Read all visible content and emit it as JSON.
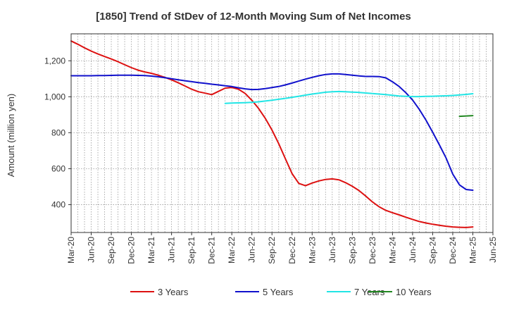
{
  "chart_data": {
    "type": "line",
    "title": "[1850]  Trend of StDev of 12-Month Moving Sum of Net Incomes",
    "ylabel": "Amount (million yen)",
    "xlabel": "",
    "ylim": [
      245,
      1350
    ],
    "yticks": [
      400,
      600,
      800,
      1000,
      1200
    ],
    "ytick_labels": [
      "400",
      "600",
      "800",
      "1,000",
      "1,200"
    ],
    "x_start": "Mar-20",
    "x_end": "Jun-25",
    "xticks": [
      "Mar-20",
      "Jun-20",
      "Sep-20",
      "Dec-20",
      "Mar-21",
      "Jun-21",
      "Sep-21",
      "Dec-21",
      "Mar-22",
      "Jun-22",
      "Sep-22",
      "Dec-22",
      "Mar-23",
      "Jun-23",
      "Sep-23",
      "Dec-23",
      "Mar-24",
      "Jun-24",
      "Sep-24",
      "Dec-24",
      "Mar-25",
      "Jun-25"
    ],
    "grid": true,
    "legend_position": "bottom",
    "series": [
      {
        "name": "3 Years",
        "color": "#dd1111",
        "x": [
          "Mar-20",
          "Apr-20",
          "May-20",
          "Jun-20",
          "Jul-20",
          "Aug-20",
          "Sep-20",
          "Oct-20",
          "Nov-20",
          "Dec-20",
          "Jan-21",
          "Feb-21",
          "Mar-21",
          "Apr-21",
          "May-21",
          "Jun-21",
          "Jul-21",
          "Aug-21",
          "Sep-21",
          "Oct-21",
          "Nov-21",
          "Dec-21",
          "Jan-22",
          "Feb-22",
          "Mar-22",
          "Apr-22",
          "May-22",
          "Jun-22",
          "Jul-22",
          "Aug-22",
          "Sep-22",
          "Oct-22",
          "Nov-22",
          "Dec-22",
          "Jan-23",
          "Feb-23",
          "Mar-23",
          "Apr-23",
          "May-23",
          "Jun-23",
          "Jul-23",
          "Aug-23",
          "Sep-23",
          "Oct-23",
          "Nov-23",
          "Dec-23",
          "Jan-24",
          "Feb-24",
          "Mar-24",
          "Apr-24",
          "May-24",
          "Jun-24",
          "Jul-24",
          "Aug-24",
          "Sep-24",
          "Oct-24",
          "Nov-24",
          "Dec-24",
          "Jan-25",
          "Feb-25",
          "Mar-25"
        ],
        "values": [
          1310,
          1292,
          1272,
          1254,
          1238,
          1224,
          1210,
          1195,
          1178,
          1162,
          1148,
          1138,
          1130,
          1120,
          1108,
          1094,
          1078,
          1060,
          1042,
          1028,
          1020,
          1012,
          1030,
          1048,
          1052,
          1042,
          1018,
          980,
          935,
          880,
          815,
          740,
          655,
          572,
          518,
          505,
          520,
          532,
          540,
          543,
          538,
          522,
          502,
          478,
          448,
          415,
          388,
          368,
          355,
          343,
          330,
          318,
          306,
          298,
          291,
          285,
          280,
          276,
          274,
          273,
          276
        ]
      },
      {
        "name": "5 Years",
        "color": "#1111cc",
        "x": [
          "Mar-20",
          "Apr-20",
          "May-20",
          "Jun-20",
          "Jul-20",
          "Aug-20",
          "Sep-20",
          "Oct-20",
          "Nov-20",
          "Dec-20",
          "Jan-21",
          "Feb-21",
          "Mar-21",
          "Apr-21",
          "May-21",
          "Jun-21",
          "Jul-21",
          "Aug-21",
          "Sep-21",
          "Oct-21",
          "Nov-21",
          "Dec-21",
          "Jan-22",
          "Feb-22",
          "Mar-22",
          "Apr-22",
          "May-22",
          "Jun-22",
          "Jul-22",
          "Aug-22",
          "Sep-22",
          "Oct-22",
          "Nov-22",
          "Dec-22",
          "Jan-23",
          "Feb-23",
          "Mar-23",
          "Apr-23",
          "May-23",
          "Jun-23",
          "Jul-23",
          "Aug-23",
          "Sep-23",
          "Oct-23",
          "Nov-23",
          "Dec-23",
          "Jan-24",
          "Feb-24",
          "Mar-24",
          "Apr-24",
          "May-24",
          "Jun-24",
          "Jul-24",
          "Aug-24",
          "Sep-24",
          "Oct-24",
          "Nov-24",
          "Dec-24",
          "Jan-25",
          "Feb-25",
          "Mar-25"
        ],
        "values": [
          1117,
          1117,
          1117,
          1117,
          1118,
          1118,
          1119,
          1120,
          1120,
          1120,
          1119,
          1118,
          1115,
          1111,
          1106,
          1100,
          1094,
          1089,
          1084,
          1079,
          1075,
          1070,
          1066,
          1061,
          1057,
          1050,
          1044,
          1040,
          1041,
          1045,
          1051,
          1057,
          1066,
          1076,
          1087,
          1098,
          1108,
          1117,
          1124,
          1127,
          1127,
          1124,
          1120,
          1116,
          1113,
          1113,
          1112,
          1105,
          1083,
          1057,
          1022,
          982,
          930,
          870,
          803,
          733,
          660,
          570,
          510,
          484,
          480
        ]
      },
      {
        "name": "7 Years",
        "color": "#22e5e5",
        "x": [
          "Feb-22",
          "Mar-22",
          "Apr-22",
          "May-22",
          "Jun-22",
          "Jul-22",
          "Aug-22",
          "Sep-22",
          "Oct-22",
          "Nov-22",
          "Dec-22",
          "Jan-23",
          "Feb-23",
          "Mar-23",
          "Apr-23",
          "May-23",
          "Jun-23",
          "Jul-23",
          "Aug-23",
          "Sep-23",
          "Oct-23",
          "Nov-23",
          "Dec-23",
          "Jan-24",
          "Feb-24",
          "Mar-24",
          "Apr-24",
          "May-24",
          "Jun-24",
          "Jul-24",
          "Aug-24",
          "Sep-24",
          "Oct-24",
          "Nov-24",
          "Dec-24",
          "Jan-25",
          "Feb-25",
          "Mar-25"
        ],
        "values": [
          963,
          965,
          966,
          967,
          969,
          972,
          976,
          981,
          986,
          991,
          997,
          1003,
          1009,
          1015,
          1020,
          1025,
          1028,
          1029,
          1028,
          1026,
          1024,
          1021,
          1018,
          1015,
          1012,
          1008,
          1004,
          1002,
          1001,
          1001,
          1002,
          1003,
          1004,
          1005,
          1007,
          1010,
          1013,
          1017
        ]
      },
      {
        "name": "10 Years",
        "color": "#228822",
        "x": [
          "Jan-25",
          "Feb-25",
          "Mar-25"
        ],
        "values": [
          891,
          893,
          895
        ]
      }
    ]
  }
}
